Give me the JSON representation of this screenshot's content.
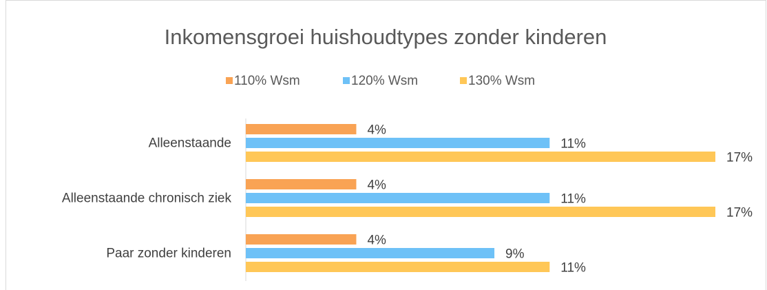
{
  "chart_data": {
    "type": "bar",
    "orientation": "horizontal",
    "title": "Inkomensgroei huishoudtypes zonder kinderen",
    "categories": [
      "Alleenstaande",
      "Alleenstaande chronisch ziek",
      "Paar zonder kinderen"
    ],
    "series": [
      {
        "name": "110% Wsm",
        "color": "#F9A354",
        "values": [
          4,
          4,
          4
        ],
        "value_labels": [
          "4%",
          "4%",
          "4%"
        ]
      },
      {
        "name": "120% Wsm",
        "color": "#6EC1F7",
        "values": [
          11,
          11,
          9
        ],
        "value_labels": [
          "11%",
          "11%",
          "9%"
        ]
      },
      {
        "name": "130% Wsm",
        "color": "#FFC757",
        "values": [
          17,
          17,
          11
        ],
        "value_labels": [
          "17%",
          "17%",
          "11%"
        ]
      }
    ],
    "legend": "top"
  }
}
